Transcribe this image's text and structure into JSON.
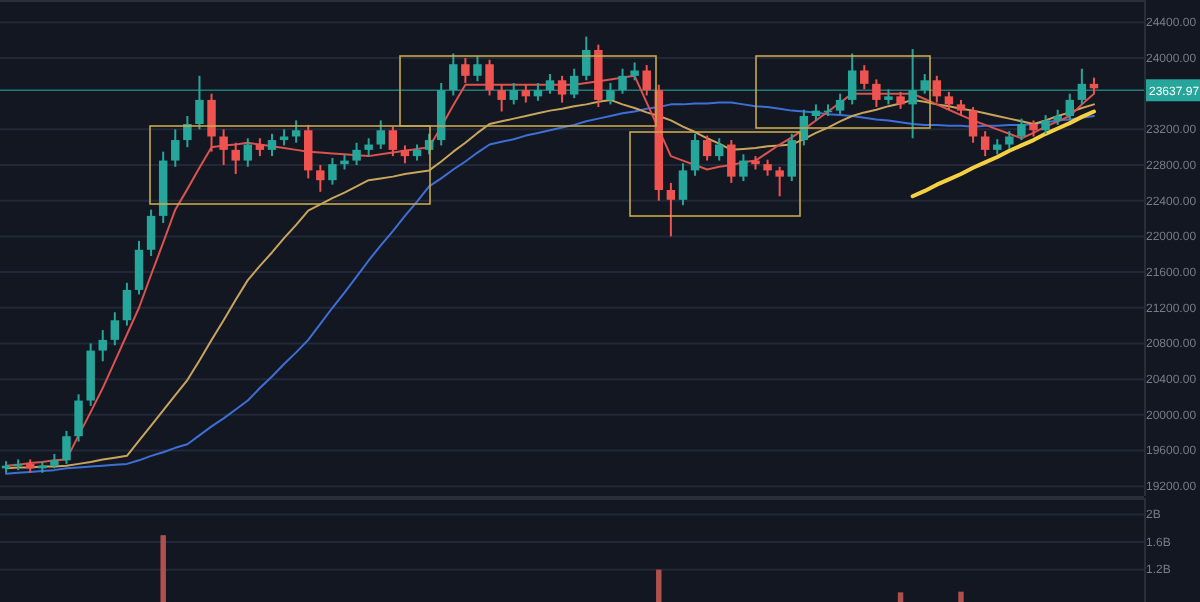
{
  "chart_data": [
    {
      "type": "candlestick",
      "categories": [
        null,
        null,
        null,
        null,
        null,
        null,
        null,
        null,
        null,
        null,
        null,
        null,
        null,
        null,
        null,
        null,
        null,
        null,
        null,
        null,
        null,
        null,
        null,
        null,
        null,
        null,
        null,
        null,
        null,
        null,
        null,
        null,
        null,
        null,
        null,
        null,
        null,
        null,
        null,
        null,
        null,
        null,
        null,
        null,
        null,
        null,
        null,
        null,
        null,
        null,
        null,
        null,
        null,
        null,
        null,
        null,
        null,
        null,
        null,
        null,
        null,
        null,
        null,
        null,
        null,
        null,
        null,
        null,
        null,
        null,
        null,
        null,
        null,
        null,
        null,
        null,
        null,
        null,
        null,
        null,
        null,
        null,
        null,
        null,
        null,
        null,
        null,
        null,
        null,
        null,
        null
      ],
      "ohlc": [
        [
          19400,
          19480,
          19350,
          19430
        ],
        [
          19430,
          19500,
          19380,
          19450
        ],
        [
          19450,
          19500,
          19350,
          19400
        ],
        [
          19400,
          19480,
          19350,
          19430
        ],
        [
          19430,
          19560,
          19400,
          19490
        ],
        [
          19490,
          19820,
          19450,
          19760
        ],
        [
          19760,
          20230,
          19700,
          20160
        ],
        [
          20160,
          20800,
          20100,
          20720
        ],
        [
          20720,
          20950,
          20600,
          20840
        ],
        [
          20840,
          21150,
          20780,
          21060
        ],
        [
          21060,
          21480,
          21000,
          21400
        ],
        [
          21400,
          21950,
          21350,
          21850
        ],
        [
          21850,
          22300,
          21780,
          22230
        ],
        [
          22230,
          22950,
          22150,
          22850
        ],
        [
          22850,
          23200,
          22780,
          23080
        ],
        [
          23080,
          23350,
          23000,
          23260
        ],
        [
          23260,
          23800,
          23200,
          23530
        ],
        [
          23530,
          23600,
          22950,
          23120
        ],
        [
          23120,
          23200,
          22800,
          22970
        ],
        [
          22970,
          23050,
          22700,
          22850
        ],
        [
          22850,
          23100,
          22780,
          23030
        ],
        [
          23030,
          23100,
          22900,
          22970
        ],
        [
          22970,
          23150,
          22900,
          23080
        ],
        [
          23080,
          23200,
          23020,
          23120
        ],
        [
          23120,
          23300,
          23050,
          23190
        ],
        [
          23190,
          23250,
          22650,
          22740
        ],
        [
          22740,
          22800,
          22500,
          22630
        ],
        [
          22630,
          22880,
          22580,
          22810
        ],
        [
          22810,
          22920,
          22750,
          22850
        ],
        [
          22850,
          23050,
          22800,
          22970
        ],
        [
          22970,
          23100,
          22900,
          23030
        ],
        [
          23030,
          23300,
          22980,
          23190
        ],
        [
          23190,
          23230,
          22900,
          22970
        ],
        [
          22970,
          23020,
          22820,
          22900
        ],
        [
          22900,
          23030,
          22850,
          22970
        ],
        [
          22970,
          23150,
          22920,
          23080
        ],
        [
          23080,
          23720,
          23020,
          23640
        ],
        [
          23640,
          24050,
          23580,
          23930
        ],
        [
          23930,
          24000,
          23720,
          23800
        ],
        [
          23800,
          24020,
          23740,
          23930
        ],
        [
          23930,
          23980,
          23580,
          23640
        ],
        [
          23640,
          23700,
          23400,
          23530
        ],
        [
          23530,
          23720,
          23480,
          23640
        ],
        [
          23640,
          23700,
          23500,
          23570
        ],
        [
          23570,
          23720,
          23520,
          23640
        ],
        [
          23640,
          23820,
          23600,
          23750
        ],
        [
          23750,
          23800,
          23500,
          23590
        ],
        [
          23590,
          23880,
          23550,
          23800
        ],
        [
          23800,
          24240,
          23750,
          24090
        ],
        [
          24090,
          24150,
          23450,
          23530
        ],
        [
          23530,
          23720,
          23480,
          23640
        ],
        [
          23640,
          23880,
          23600,
          23800
        ],
        [
          23800,
          23950,
          23750,
          23860
        ],
        [
          23860,
          23920,
          23580,
          23640
        ],
        [
          23640,
          23700,
          22400,
          22520
        ],
        [
          22520,
          22600,
          22000,
          22410
        ],
        [
          22410,
          22820,
          22350,
          22740
        ],
        [
          22740,
          23150,
          22680,
          23080
        ],
        [
          23080,
          23130,
          22850,
          22900
        ],
        [
          22900,
          23100,
          22850,
          23030
        ],
        [
          23030,
          23080,
          22600,
          22670
        ],
        [
          22670,
          22920,
          22620,
          22850
        ],
        [
          22850,
          22900,
          22750,
          22810
        ],
        [
          22810,
          22860,
          22680,
          22740
        ],
        [
          22740,
          22780,
          22450,
          22670
        ],
        [
          22670,
          23150,
          22620,
          23080
        ],
        [
          23080,
          23420,
          23020,
          23350
        ],
        [
          23350,
          23480,
          23300,
          23410
        ],
        [
          23410,
          23480,
          23350,
          23410
        ],
        [
          23410,
          23600,
          23370,
          23530
        ],
        [
          23530,
          24050,
          23480,
          23860
        ],
        [
          23860,
          23920,
          23650,
          23710
        ],
        [
          23710,
          23760,
          23450,
          23530
        ],
        [
          23530,
          23650,
          23480,
          23570
        ],
        [
          23570,
          23620,
          23430,
          23480
        ],
        [
          23480,
          24100,
          23100,
          23640
        ],
        [
          23640,
          23820,
          23600,
          23750
        ],
        [
          23750,
          23800,
          23500,
          23570
        ],
        [
          23570,
          23620,
          23420,
          23480
        ],
        [
          23480,
          23530,
          23350,
          23410
        ],
        [
          23410,
          23450,
          23050,
          23120
        ],
        [
          23120,
          23180,
          22900,
          22970
        ],
        [
          22970,
          23090,
          22920,
          23030
        ],
        [
          23030,
          23180,
          22980,
          23120
        ],
        [
          23120,
          23320,
          23080,
          23260
        ],
        [
          23260,
          23300,
          23120,
          23190
        ],
        [
          23190,
          23360,
          23150,
          23300
        ],
        [
          23300,
          23420,
          23250,
          23350
        ],
        [
          23350,
          23600,
          23300,
          23530
        ],
        [
          23530,
          23880,
          23480,
          23710
        ],
        [
          23710,
          23780,
          23600,
          23660
        ]
      ],
      "series": [
        {
          "type": "line",
          "color": "#3d6fd6",
          "values": [
            19340,
            19350,
            19360,
            19370,
            19380,
            19400,
            19410,
            19420,
            19430,
            19440,
            19450,
            19490,
            19540,
            19580,
            19630,
            19670,
            19770,
            19870,
            19960,
            20060,
            20160,
            20300,
            20430,
            20570,
            20700,
            20840,
            21020,
            21200,
            21370,
            21550,
            21730,
            21900,
            22060,
            22230,
            22390,
            22560,
            22650,
            22750,
            22840,
            22940,
            23030,
            23060,
            23090,
            23130,
            23160,
            23190,
            23220,
            23250,
            23290,
            23320,
            23350,
            23380,
            23400,
            23430,
            23450,
            23480,
            23480,
            23490,
            23490,
            23500,
            23500,
            23480,
            23460,
            23450,
            23430,
            23410,
            23400,
            23390,
            23370,
            23360,
            23350,
            23330,
            23310,
            23300,
            23280,
            23260,
            23250,
            23250,
            23240,
            23240,
            23230,
            23240,
            23240,
            23250,
            23250,
            23260,
            23280,
            23300,
            23310,
            23330,
            23350
          ]
        },
        {
          "type": "line",
          "color": "#c9a45c",
          "values": [
            19400,
            19410,
            19410,
            19420,
            19420,
            19430,
            19450,
            19470,
            19500,
            19520,
            19540,
            19710,
            19880,
            20050,
            20220,
            20390,
            20610,
            20840,
            21060,
            21290,
            21510,
            21670,
            21820,
            21980,
            22130,
            22290,
            22360,
            22430,
            22490,
            22560,
            22630,
            22650,
            22670,
            22700,
            22720,
            22740,
            22840,
            22950,
            23050,
            23160,
            23260,
            23290,
            23320,
            23350,
            23380,
            23410,
            23430,
            23460,
            23480,
            23510,
            23530,
            23480,
            23440,
            23390,
            23350,
            23300,
            23230,
            23170,
            23100,
            23040,
            22970,
            22980,
            22990,
            23010,
            23020,
            23030,
            23090,
            23160,
            23220,
            23290,
            23350,
            23390,
            23420,
            23460,
            23490,
            23530,
            23510,
            23480,
            23460,
            23430,
            23410,
            23380,
            23350,
            23320,
            23290,
            23260,
            23300,
            23350,
            23390,
            23440,
            23480
          ]
        },
        {
          "type": "line",
          "color": "#d9534f",
          "values": [
            19430,
            19440,
            19460,
            19470,
            19490,
            19500,
            19770,
            20030,
            20300,
            20600,
            20900,
            21200,
            21570,
            21930,
            22300,
            22530,
            22770,
            23000,
            23020,
            23030,
            23050,
            23030,
            23010,
            22990,
            22970,
            22950,
            22940,
            22930,
            22920,
            22910,
            22900,
            22920,
            22940,
            22960,
            22980,
            23000,
            23230,
            23470,
            23700,
            23700,
            23700,
            23700,
            23700,
            23700,
            23700,
            23700,
            23700,
            23700,
            23720,
            23740,
            23760,
            23780,
            23800,
            23500,
            23200,
            22900,
            22850,
            22800,
            22750,
            22780,
            22800,
            22830,
            22850,
            22940,
            23030,
            23110,
            23200,
            23300,
            23400,
            23500,
            23600,
            23600,
            23600,
            23600,
            23600,
            23600,
            23540,
            23480,
            23420,
            23360,
            23300,
            23250,
            23200,
            23150,
            23100,
            23160,
            23230,
            23290,
            23350,
            23480,
            23600
          ]
        },
        {
          "type": "line",
          "color": "#f5d142",
          "values": [
            null,
            null,
            null,
            null,
            null,
            null,
            null,
            null,
            null,
            null,
            null,
            null,
            null,
            null,
            null,
            null,
            null,
            null,
            null,
            null,
            null,
            null,
            null,
            null,
            null,
            null,
            null,
            null,
            null,
            null,
            null,
            null,
            null,
            null,
            null,
            null,
            null,
            null,
            null,
            null,
            null,
            null,
            null,
            null,
            null,
            null,
            null,
            null,
            null,
            null,
            null,
            null,
            null,
            null,
            null,
            null,
            null,
            null,
            null,
            null,
            null,
            null,
            null,
            null,
            null,
            null,
            null,
            null,
            null,
            null,
            null,
            null,
            null,
            null,
            null,
            22450,
            22510,
            22580,
            22640,
            22700,
            22770,
            22830,
            22890,
            22960,
            23020,
            23080,
            23150,
            23210,
            23270,
            23340,
            23400
          ]
        }
      ],
      "ref_lines": [
        {
          "axis": "y",
          "value": 23637.97,
          "label": "23637.97",
          "color": "#26a69a"
        }
      ],
      "ylim": [
        19090,
        24650
      ],
      "yticks": [
        {
          "value": 24400,
          "label": "24400.00"
        },
        {
          "value": 24000,
          "label": "24000.00"
        },
        {
          "value": 23200,
          "label": "23200.00"
        },
        {
          "value": 22800,
          "label": "22800.00"
        },
        {
          "value": 22400,
          "label": "22400.00"
        },
        {
          "value": 22000,
          "label": "22000.00"
        },
        {
          "value": 21600,
          "label": "21600.00"
        },
        {
          "value": 21200,
          "label": "21200.00"
        },
        {
          "value": 20800,
          "label": "20800.00"
        },
        {
          "value": 20400,
          "label": "20400.00"
        },
        {
          "value": 20000,
          "label": "20000.00"
        },
        {
          "value": 19600,
          "label": "19600.00"
        },
        {
          "value": 19200,
          "label": "19200.00"
        }
      ],
      "grid": "y",
      "tick_labels": "y"
    },
    {
      "type": "bar",
      "categories": [
        null,
        null,
        null,
        null,
        null,
        null,
        null,
        null,
        null,
        null,
        null,
        null,
        null,
        null,
        null,
        null,
        null,
        null,
        null,
        null,
        null,
        null,
        null,
        null,
        null,
        null,
        null,
        null,
        null,
        null,
        null,
        null,
        null,
        null,
        null,
        null,
        null,
        null,
        null,
        null,
        null,
        null,
        null,
        null,
        null,
        null,
        null,
        null,
        null,
        null,
        null,
        null,
        null,
        null,
        null,
        null,
        null,
        null,
        null,
        null,
        null,
        null,
        null,
        null,
        null,
        null,
        null,
        null,
        null,
        null,
        null,
        null,
        null,
        null,
        null,
        null,
        null,
        null,
        null,
        null,
        null,
        null,
        null,
        null,
        null,
        null,
        null,
        null,
        null,
        null,
        null
      ],
      "values": [
        null,
        null,
        null,
        null,
        null,
        null,
        null,
        null,
        null,
        null,
        null,
        null,
        null,
        1.7,
        null,
        null,
        null,
        null,
        null,
        null,
        null,
        null,
        null,
        null,
        null,
        null,
        null,
        null,
        null,
        null,
        null,
        null,
        null,
        null,
        null,
        null,
        null,
        null,
        null,
        null,
        null,
        null,
        null,
        null,
        null,
        null,
        null,
        null,
        null,
        null,
        null,
        null,
        null,
        null,
        1.2,
        null,
        null,
        null,
        null,
        null,
        null,
        null,
        null,
        null,
        null,
        null,
        null,
        null,
        null,
        null,
        null,
        null,
        null,
        null,
        0.87,
        null,
        null,
        null,
        null,
        0.88,
        null,
        null,
        null,
        null,
        null,
        null,
        null,
        null,
        null,
        null,
        null
      ],
      "color": "#b0504c",
      "ylim": [
        0.73,
        2.24
      ],
      "yticks": [
        {
          "value": 2,
          "label": "2B"
        },
        {
          "value": 1.6,
          "label": "1.6B"
        },
        {
          "value": 1.2,
          "label": "1.2B"
        }
      ],
      "grid": "y",
      "tick_labels": "y"
    }
  ]
}
